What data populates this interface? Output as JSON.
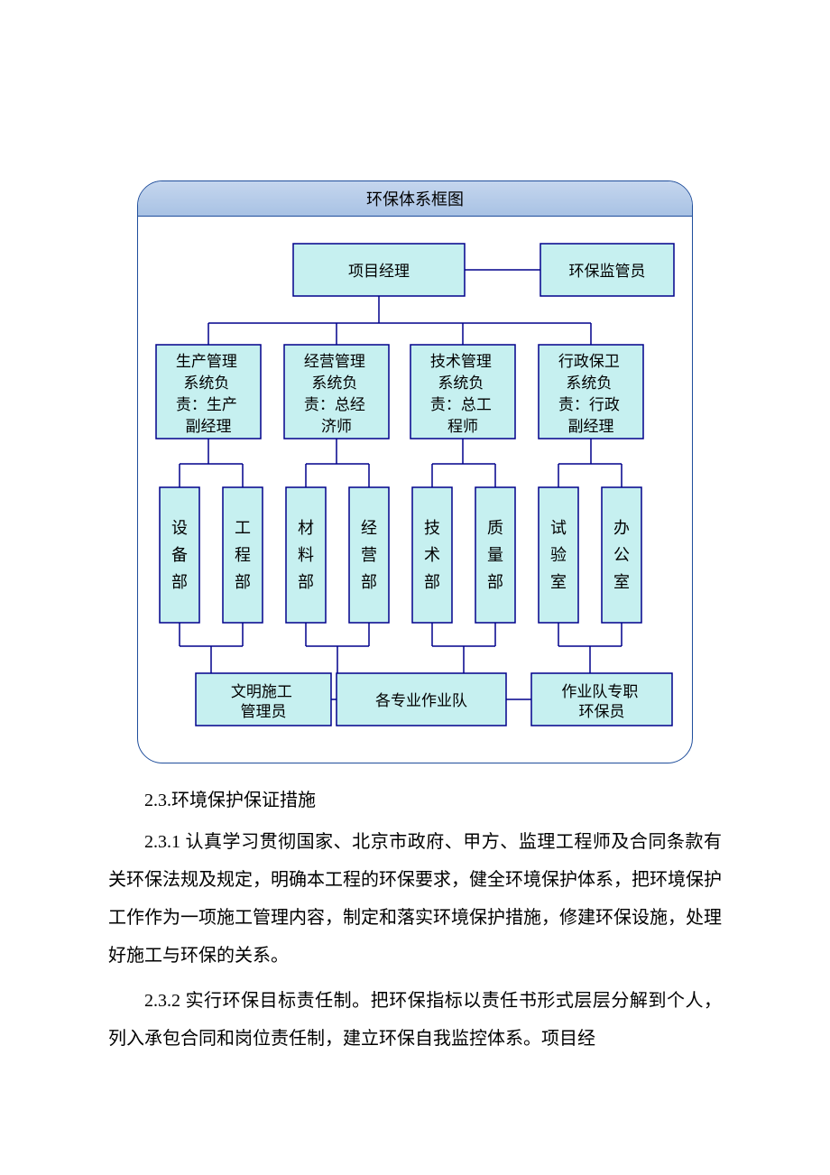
{
  "diagram": {
    "title": "环保体系框图",
    "colors": {
      "frame_border": "#1f4e9c",
      "title_gradient_top": "#c5d6ee",
      "title_gradient_bottom": "#a8c2e4",
      "node_fill": "#c6f0f0",
      "node_stroke": "#00008b",
      "edge_stroke": "#00008b",
      "background": "#ffffff"
    },
    "top": {
      "manager": "项目经理",
      "supervisor": "环保监管员"
    },
    "systems": [
      "生产管理系统负责：生产副经理",
      "经营管理系统负责：总经济师",
      "技术管理系统负责：总工程师",
      "行政保卫系统负责：行政副经理"
    ],
    "departments": [
      "设备部",
      "工程部",
      "材料部",
      "经营部",
      "技术部",
      "质量部",
      "试验室",
      "办公室"
    ],
    "bottom": {
      "left": "文明施工管理员",
      "center": "各专业作业队",
      "right": "作业队专职环保员"
    }
  },
  "text": {
    "heading": "2.3.环境保护保证措施",
    "p1": "2.3.1 认真学习贯彻国家、北京市政府、甲方、监理工程师及合同条款有关环保法规及规定，明确本工程的环保要求，健全环境保护体系，把环境保护工作作为一项施工管理内容，制定和落实环境保护措施，修建环保设施，处理好施工与环保的关系。",
    "p2": "2.3.2 实行环保目标责任制。把环保指标以责任书形式层层分解到个人，列入承包合同和岗位责任制，建立环保自我监控体系。项目经"
  }
}
